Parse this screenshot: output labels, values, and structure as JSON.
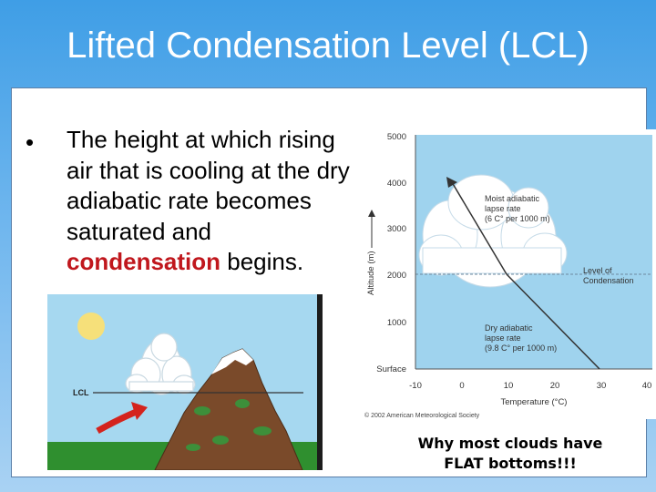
{
  "slide": {
    "title": "Lifted Condensation Level (LCL)",
    "bullet_symbol": "•",
    "bullet_text_before": "The height at which rising air that is cooling at the dry adiabatic rate becomes saturated and ",
    "bullet_highlight": "condensation",
    "bullet_text_after": " begins.",
    "caption_line1": "Why most clouds have",
    "caption_line2": "FLAT bottoms!!!"
  },
  "mountain_figure": {
    "lcl_label": "LCL"
  },
  "lcl_chart": {
    "y_axis_label": "Altitude (m)",
    "x_axis_label": "Temperature (°C)",
    "y_ticks": [
      "Surface",
      "1000",
      "2000",
      "3000",
      "4000",
      "5000"
    ],
    "x_ticks": [
      "-10",
      "0",
      "10",
      "20",
      "30",
      "40"
    ],
    "moist_label_1": "Moist adiabatic",
    "moist_label_2": "lapse rate",
    "moist_label_3": "(6 C° per 1000 m)",
    "dry_label_1": "Dry adiabatic",
    "dry_label_2": "lapse rate",
    "dry_label_3": "(9.8 C° per 1000 m)",
    "lcl_label_1": "Level of",
    "lcl_label_2": "Condensation",
    "copyright": "© 2002 American Meteorological Society"
  },
  "colors": {
    "title_text": "#ffffff",
    "highlight": "#c0171d",
    "sky_panel": "#9fd3ee",
    "mountain": "#7a4a2a",
    "cloud": "#ffffff",
    "arrow": "#d4231d",
    "grass": "#2f8f2f"
  }
}
